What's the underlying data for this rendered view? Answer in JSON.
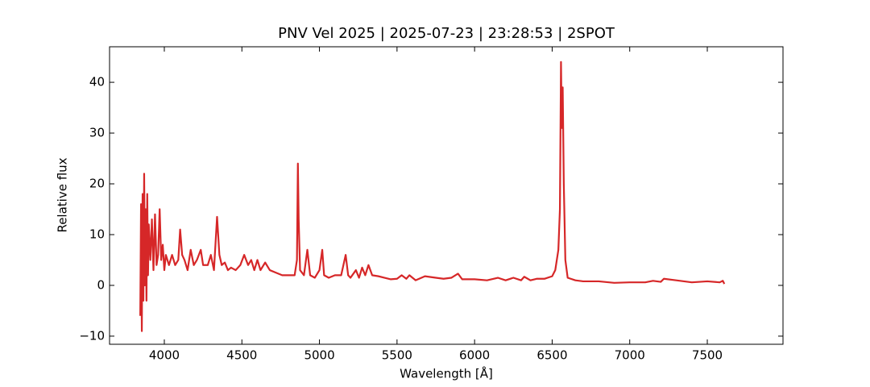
{
  "chart_data": {
    "type": "line",
    "title": "PNV Vel 2025 | 2025-07-23 | 23:28:53 | 2SPOT",
    "xlabel": "Wavelength [Å]",
    "ylabel": "Relative flux",
    "xlim": [
      3647,
      7988
    ],
    "ylim": [
      -11.6,
      47
    ],
    "xticks": [
      4000,
      4500,
      5000,
      5500,
      6000,
      6500,
      7000,
      7500
    ],
    "yticks": [
      {
        "value": -10,
        "label": "−10"
      },
      0,
      10,
      20,
      30,
      40
    ],
    "grid": false,
    "series": [
      {
        "name": "PNV Vel 2025",
        "color": "#d62728",
        "x": [
          3845,
          3850,
          3855,
          3860,
          3865,
          3870,
          3875,
          3880,
          3885,
          3890,
          3895,
          3900,
          3910,
          3920,
          3930,
          3940,
          3950,
          3960,
          3970,
          3980,
          3990,
          4000,
          4010,
          4030,
          4050,
          4070,
          4090,
          4102,
          4115,
          4130,
          4150,
          4170,
          4190,
          4210,
          4235,
          4250,
          4280,
          4300,
          4320,
          4340,
          4355,
          4370,
          4390,
          4410,
          4430,
          4460,
          4490,
          4515,
          4540,
          4560,
          4580,
          4600,
          4620,
          4650,
          4680,
          4720,
          4760,
          4800,
          4840,
          4855,
          4861,
          4866,
          4875,
          4900,
          4922,
          4940,
          4970,
          5000,
          5018,
          5030,
          5060,
          5100,
          5140,
          5169,
          5185,
          5200,
          5235,
          5255,
          5275,
          5295,
          5316,
          5340,
          5380,
          5420,
          5460,
          5500,
          5530,
          5560,
          5580,
          5620,
          5680,
          5750,
          5800,
          5850,
          5893,
          5920,
          6000,
          6080,
          6150,
          6200,
          6250,
          6300,
          6320,
          6360,
          6400,
          6450,
          6500,
          6520,
          6540,
          6550,
          6557,
          6562,
          6568,
          6575,
          6585,
          6600,
          6650,
          6700,
          6800,
          6900,
          7000,
          7100,
          7150,
          7200,
          7220,
          7300,
          7400,
          7500,
          7580,
          7600,
          7610
        ],
        "values": [
          -6,
          16,
          -9,
          18,
          -3,
          22,
          0,
          15,
          -3,
          18,
          2,
          12,
          5,
          13,
          3,
          14,
          4,
          6,
          15,
          5,
          8,
          3,
          6,
          4,
          6,
          4,
          5,
          11,
          6,
          5,
          3,
          7,
          4,
          5,
          7,
          4,
          4,
          6,
          3,
          13.5,
          6,
          4,
          4.5,
          3,
          3.5,
          3,
          4,
          6,
          4,
          5,
          3,
          5,
          3,
          4.5,
          3,
          2.5,
          2,
          2,
          2,
          5,
          24,
          13,
          3,
          2,
          7,
          2,
          1.5,
          3,
          7,
          2,
          1.5,
          2,
          2,
          6,
          2,
          1.5,
          3,
          1.5,
          3.5,
          2,
          4,
          2,
          1.8,
          1.5,
          1.2,
          1.3,
          2,
          1.3,
          2,
          1,
          1.8,
          1.5,
          1.3,
          1.5,
          2.3,
          1.2,
          1.2,
          1,
          1.5,
          1,
          1.5,
          1,
          1.7,
          1,
          1.3,
          1.3,
          1.8,
          3,
          7,
          15,
          44,
          31,
          39,
          20,
          5,
          1.5,
          1,
          0.8,
          0.8,
          0.5,
          0.6,
          0.6,
          0.9,
          0.7,
          1.3,
          1,
          0.6,
          0.8,
          0.6,
          0.9,
          0.3
        ]
      }
    ]
  }
}
